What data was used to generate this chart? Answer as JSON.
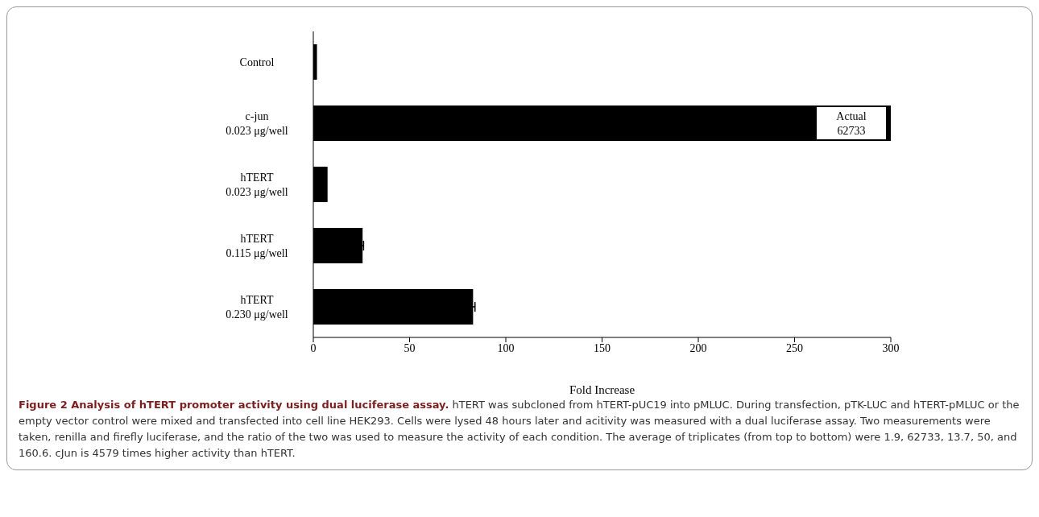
{
  "chart_data": {
    "type": "bar",
    "orientation": "horizontal",
    "title": "Figure 2 Analysis of hTERT promoter activity using dual luciferase assay.",
    "xlabel": "Fold Increase",
    "categories": [
      "Control",
      "c-jun\n0.023 μg/well",
      "hTERT\n0.023 μg/well",
      "hTERT\n0.115 μg/well",
      "hTERT\n0.230 μg/well"
    ],
    "values": [
      1.9,
      300,
      7.4,
      25.6,
      83
    ],
    "value_labels": [
      null,
      "Actual\n62733",
      null,
      null,
      null
    ],
    "errors": [
      null,
      null,
      null,
      0.5,
      1
    ],
    "color": "#000000",
    "xlim": [
      0,
      300
    ],
    "xticks": [
      0,
      50,
      100,
      150,
      200,
      250,
      300
    ],
    "grid": false,
    "legend": false,
    "annotations": [
      "hTERT was subcloned from hTERT-pUC19 into pMLUC. During transfection, pTK-LUC and hTERT-pMLUC or the empty vector control were mixed and transfected into cell line HEK293. Cells were lysed 48 hours later and acitivity was measured with a dual luciferase assay. Two measurements were taken, renilla and firefly luciferase, and the ratio of the two was used to measure the activity of each condition. The average of triplicates (from top to bottom) were 1.9, 62733, 13.7, 50, and 160.6. cJun is 4579 times higher activity than hTERT."
    ]
  }
}
